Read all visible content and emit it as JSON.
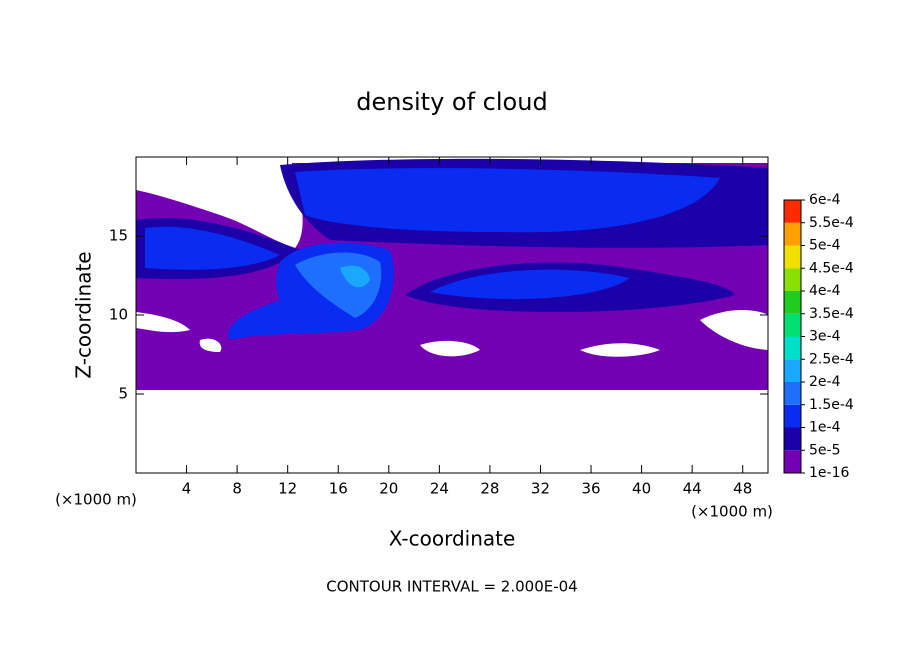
{
  "chart_data": {
    "type": "contour",
    "title": "density of cloud",
    "xlabel": "X-coordinate",
    "ylabel": "Z-coordinate",
    "x_unit_label": "(×1000 m)",
    "y_unit_label": "(×1000 m)",
    "footnote": "CONTOUR INTERVAL = 2.000E-04",
    "xlim": [
      0,
      50
    ],
    "ylim": [
      0,
      20
    ],
    "xticks": [
      4,
      8,
      12,
      16,
      20,
      24,
      28,
      32,
      36,
      40,
      44,
      48
    ],
    "yticks": [
      5,
      10,
      15
    ],
    "colorbar": {
      "levels": [
        {
          "value": 1e-16,
          "label": "1e-16"
        },
        {
          "value": 5e-05,
          "label": "5e-5"
        },
        {
          "value": 0.0001,
          "label": "1e-4"
        },
        {
          "value": 0.00015,
          "label": "1.5e-4"
        },
        {
          "value": 0.0002,
          "label": "2e-4"
        },
        {
          "value": 0.00025,
          "label": "2.5e-4"
        },
        {
          "value": 0.0003,
          "label": "3e-4"
        },
        {
          "value": 0.00035,
          "label": "3.5e-4"
        },
        {
          "value": 0.0004,
          "label": "4e-4"
        },
        {
          "value": 0.00045,
          "label": "4.5e-4"
        },
        {
          "value": 0.0005,
          "label": "5e-4"
        },
        {
          "value": 0.00055,
          "label": "5.5e-4"
        },
        {
          "value": 0.0006,
          "label": "6e-4"
        }
      ],
      "colors": [
        "#7300b3",
        "#1c00a8",
        "#0a2cf0",
        "#1f6fff",
        "#1aa8ff",
        "#00e0c8",
        "#00e070",
        "#1fcc1f",
        "#8ae000",
        "#f0e000",
        "#ffa000",
        "#ff2a00",
        "#ff7a7a"
      ]
    }
  }
}
